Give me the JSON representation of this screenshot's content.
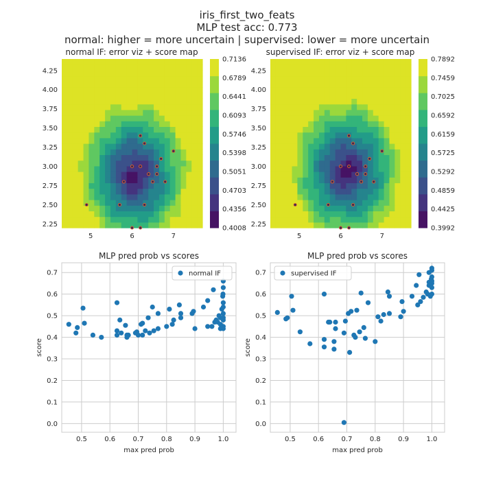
{
  "suptitle": [
    "iris_first_two_feats",
    "MLP test acc: 0.773",
    "normal: higher = more uncertain | supervised: lower = more uncertain"
  ],
  "colors": {
    "scatter": "#1f77b4",
    "point_edge": "#e4602a",
    "point_fill": "#3b2a55",
    "grid": "#cccccc",
    "axis_bg": "#ffffff"
  },
  "chart_data": [
    {
      "type": "heatmap",
      "title": "normal IF: error viz + score map",
      "xlim": [
        4.3,
        7.7
      ],
      "ylim": [
        2.2,
        4.4
      ],
      "x_ticks": [
        5,
        6,
        7
      ],
      "y_ticks": [
        "2.25",
        "2.50",
        "2.75",
        "3.00",
        "3.25",
        "3.50",
        "3.75",
        "4.00",
        "4.25"
      ],
      "colorbar_ticks": [
        "0.4008",
        "0.4356",
        "0.4703",
        "0.5051",
        "0.5398",
        "0.5746",
        "0.6093",
        "0.6441",
        "0.6789",
        "0.7136"
      ],
      "score_range": [
        0.4008,
        0.7136
      ],
      "center": [
        6.05,
        2.9
      ],
      "error_points": [
        [
          6.2,
          3.4
        ],
        [
          6.3,
          3.3
        ],
        [
          6.0,
          3.0
        ],
        [
          6.2,
          3.0
        ],
        [
          6.7,
          3.1
        ],
        [
          6.6,
          3.0
        ],
        [
          6.4,
          2.9
        ],
        [
          6.6,
          2.9
        ],
        [
          5.8,
          2.8
        ],
        [
          6.5,
          2.8
        ],
        [
          6.8,
          2.8
        ],
        [
          7.0,
          3.2
        ],
        [
          4.9,
          2.5
        ],
        [
          5.7,
          2.5
        ],
        [
          6.3,
          2.5
        ],
        [
          6.0,
          2.2
        ],
        [
          6.2,
          2.2
        ]
      ]
    },
    {
      "type": "heatmap",
      "title": "supervised IF: error viz + score map",
      "xlim": [
        4.3,
        7.7
      ],
      "ylim": [
        2.2,
        4.4
      ],
      "x_ticks": [
        5,
        6,
        7
      ],
      "y_ticks": [
        "2.25",
        "2.50",
        "2.75",
        "3.00",
        "3.25",
        "3.50",
        "3.75",
        "4.00",
        "4.25"
      ],
      "colorbar_ticks": [
        "0.3992",
        "0.4425",
        "0.4859",
        "0.5292",
        "0.5725",
        "0.6159",
        "0.6592",
        "0.7025",
        "0.7459",
        "0.7892"
      ],
      "score_range": [
        0.3992,
        0.7892
      ],
      "center": [
        6.15,
        2.95
      ],
      "error_points": [
        [
          6.2,
          3.4
        ],
        [
          6.3,
          3.3
        ],
        [
          6.0,
          3.0
        ],
        [
          6.2,
          3.0
        ],
        [
          6.7,
          3.1
        ],
        [
          6.6,
          3.0
        ],
        [
          6.4,
          2.9
        ],
        [
          6.6,
          2.9
        ],
        [
          5.8,
          2.8
        ],
        [
          6.5,
          2.8
        ],
        [
          6.8,
          2.8
        ],
        [
          7.0,
          3.2
        ],
        [
          4.9,
          2.5
        ],
        [
          5.7,
          2.5
        ],
        [
          6.3,
          2.5
        ],
        [
          6.0,
          2.2
        ],
        [
          6.2,
          2.2
        ]
      ]
    },
    {
      "type": "scatter",
      "title": "MLP pred prob vs scores",
      "xlabel": "max pred prob",
      "ylabel": "score",
      "xlim": [
        0.43,
        1.045
      ],
      "ylim": [
        -0.04,
        0.745
      ],
      "x_ticks": [
        "0.5",
        "0.6",
        "0.7",
        "0.8",
        "0.9",
        "1.0"
      ],
      "y_ticks": [
        "0.0",
        "0.1",
        "0.2",
        "0.3",
        "0.4",
        "0.5",
        "0.6",
        "0.7"
      ],
      "legend": "normal IF",
      "legend_loc": "upper right",
      "points": [
        [
          0.455,
          0.46
        ],
        [
          0.48,
          0.42
        ],
        [
          0.485,
          0.445
        ],
        [
          0.505,
          0.535
        ],
        [
          0.51,
          0.465
        ],
        [
          0.54,
          0.41
        ],
        [
          0.57,
          0.4
        ],
        [
          0.625,
          0.56
        ],
        [
          0.625,
          0.43
        ],
        [
          0.625,
          0.41
        ],
        [
          0.635,
          0.48
        ],
        [
          0.64,
          0.42
        ],
        [
          0.655,
          0.455
        ],
        [
          0.66,
          0.41
        ],
        [
          0.66,
          0.4
        ],
        [
          0.665,
          0.41
        ],
        [
          0.69,
          0.42
        ],
        [
          0.695,
          0.425
        ],
        [
          0.7,
          0.41
        ],
        [
          0.71,
          0.46
        ],
        [
          0.715,
          0.465
        ],
        [
          0.715,
          0.41
        ],
        [
          0.725,
          0.43
        ],
        [
          0.735,
          0.49
        ],
        [
          0.74,
          0.42
        ],
        [
          0.75,
          0.54
        ],
        [
          0.755,
          0.43
        ],
        [
          0.77,
          0.44
        ],
        [
          0.77,
          0.51
        ],
        [
          0.8,
          0.45
        ],
        [
          0.81,
          0.53
        ],
        [
          0.82,
          0.46
        ],
        [
          0.825,
          0.48
        ],
        [
          0.845,
          0.55
        ],
        [
          0.85,
          0.51
        ],
        [
          0.85,
          0.49
        ],
        [
          0.89,
          0.51
        ],
        [
          0.895,
          0.52
        ],
        [
          0.9,
          0.44
        ],
        [
          0.93,
          0.54
        ],
        [
          0.945,
          0.57
        ],
        [
          0.945,
          0.45
        ],
        [
          0.96,
          0.45
        ],
        [
          0.965,
          0.62
        ],
        [
          0.97,
          0.47
        ],
        [
          0.975,
          0.48
        ],
        [
          0.98,
          0.47
        ],
        [
          0.985,
          0.5
        ],
        [
          0.99,
          0.49
        ],
        [
          0.99,
          0.46
        ],
        [
          0.99,
          0.44
        ],
        [
          0.995,
          0.53
        ],
        [
          0.998,
          0.59
        ],
        [
          0.999,
          0.6
        ],
        [
          1.0,
          0.66
        ],
        [
          1.0,
          0.63
        ],
        [
          1.0,
          0.56
        ],
        [
          1.0,
          0.54
        ],
        [
          1.0,
          0.51
        ],
        [
          1.0,
          0.49
        ],
        [
          1.0,
          0.48
        ],
        [
          1.0,
          0.45
        ],
        [
          1.0,
          0.44
        ]
      ]
    },
    {
      "type": "scatter",
      "title": "MLP pred prob vs scores",
      "xlabel": "max pred prob",
      "ylabel": "score",
      "xlim": [
        0.43,
        1.045
      ],
      "ylim": [
        -0.04,
        0.745
      ],
      "x_ticks": [
        "0.5",
        "0.6",
        "0.7",
        "0.8",
        "0.9",
        "1.0"
      ],
      "y_ticks": [
        "0.0",
        "0.1",
        "0.2",
        "0.3",
        "0.4",
        "0.5",
        "0.6",
        "0.7"
      ],
      "legend": "supervised IF",
      "legend_loc": "upper left",
      "points": [
        [
          0.455,
          0.515
        ],
        [
          0.485,
          0.485
        ],
        [
          0.49,
          0.49
        ],
        [
          0.505,
          0.59
        ],
        [
          0.51,
          0.525
        ],
        [
          0.535,
          0.425
        ],
        [
          0.57,
          0.37
        ],
        [
          0.62,
          0.6
        ],
        [
          0.62,
          0.39
        ],
        [
          0.62,
          0.355
        ],
        [
          0.635,
          0.47
        ],
        [
          0.64,
          0.47
        ],
        [
          0.655,
          0.38
        ],
        [
          0.655,
          0.345
        ],
        [
          0.66,
          0.44
        ],
        [
          0.66,
          0.47
        ],
        [
          0.69,
          0.42
        ],
        [
          0.69,
          0.005
        ],
        [
          0.695,
          0.475
        ],
        [
          0.705,
          0.51
        ],
        [
          0.71,
          0.33
        ],
        [
          0.715,
          0.52
        ],
        [
          0.725,
          0.41
        ],
        [
          0.73,
          0.4
        ],
        [
          0.735,
          0.525
        ],
        [
          0.745,
          0.425
        ],
        [
          0.75,
          0.605
        ],
        [
          0.76,
          0.445
        ],
        [
          0.765,
          0.395
        ],
        [
          0.775,
          0.56
        ],
        [
          0.8,
          0.38
        ],
        [
          0.81,
          0.495
        ],
        [
          0.82,
          0.475
        ],
        [
          0.83,
          0.505
        ],
        [
          0.845,
          0.61
        ],
        [
          0.85,
          0.59
        ],
        [
          0.85,
          0.51
        ],
        [
          0.89,
          0.495
        ],
        [
          0.895,
          0.565
        ],
        [
          0.9,
          0.52
        ],
        [
          0.93,
          0.59
        ],
        [
          0.945,
          0.64
        ],
        [
          0.95,
          0.55
        ],
        [
          0.955,
          0.69
        ],
        [
          0.96,
          0.565
        ],
        [
          0.97,
          0.585
        ],
        [
          0.98,
          0.61
        ],
        [
          0.985,
          0.6
        ],
        [
          0.99,
          0.655
        ],
        [
          0.99,
          0.64
        ],
        [
          0.99,
          0.7
        ],
        [
          0.995,
          0.59
        ],
        [
          0.998,
          0.67
        ],
        [
          1.0,
          0.72
        ],
        [
          1.0,
          0.71
        ],
        [
          1.0,
          0.68
        ],
        [
          1.0,
          0.66
        ],
        [
          1.0,
          0.65
        ],
        [
          1.0,
          0.63
        ],
        [
          1.0,
          0.6
        ]
      ]
    }
  ]
}
